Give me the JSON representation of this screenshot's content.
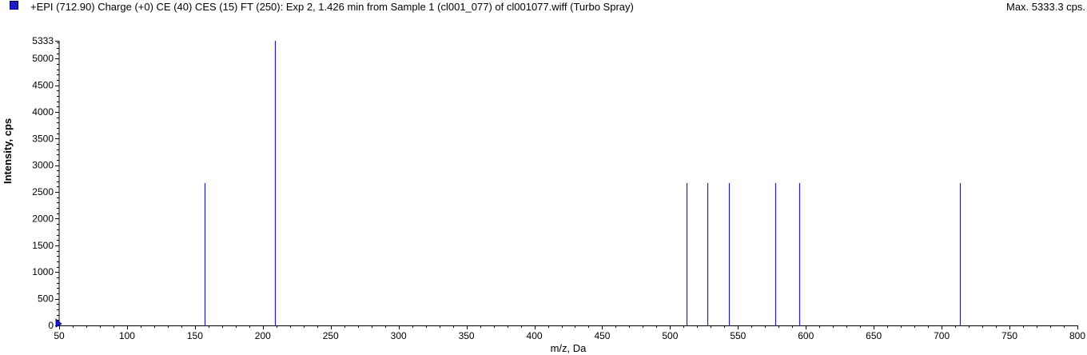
{
  "header": {
    "title": "+EPI (712.90) Charge (+0) CE (40) CES (15) FT (250): Exp 2, 1.426 min from Sample 1 (cl001_077) of cl001077.wiff (Turbo Spray)",
    "max_label": "Max. 5333.3 cps.",
    "series_color": "#1c1ccc"
  },
  "chart_data": {
    "type": "bar",
    "title": "+EPI (712.90) Charge (+0) CE (40) CES (15) FT (250): Exp 2, 1.426 min from Sample 1 (cl001_077) of cl001077.wiff (Turbo Spray)",
    "xlabel": "m/z, Da",
    "ylabel": "Intensity, cps",
    "xlim": [
      50,
      800
    ],
    "ylim": [
      0,
      5333
    ],
    "x_ticks": [
      50,
      100,
      150,
      200,
      250,
      300,
      350,
      400,
      450,
      500,
      550,
      600,
      650,
      700,
      750,
      800
    ],
    "y_ticks": [
      0,
      500,
      1000,
      1500,
      2000,
      2500,
      3000,
      3500,
      4000,
      4500,
      5000,
      5333
    ],
    "grid": false,
    "series": [
      {
        "points": [
          {
            "x": 157.0,
            "y": 2667
          },
          {
            "x": 209.1,
            "y": 5333
          },
          {
            "x": 512.2,
            "y": 2667
          },
          {
            "x": 527.2,
            "y": 2667
          },
          {
            "x": 543.1,
            "y": 2667
          },
          {
            "x": 577.2,
            "y": 2667
          },
          {
            "x": 595.0,
            "y": 2667
          },
          {
            "x": 713.2,
            "y": 2667
          }
        ],
        "color": "#1c1ccc"
      }
    ]
  }
}
